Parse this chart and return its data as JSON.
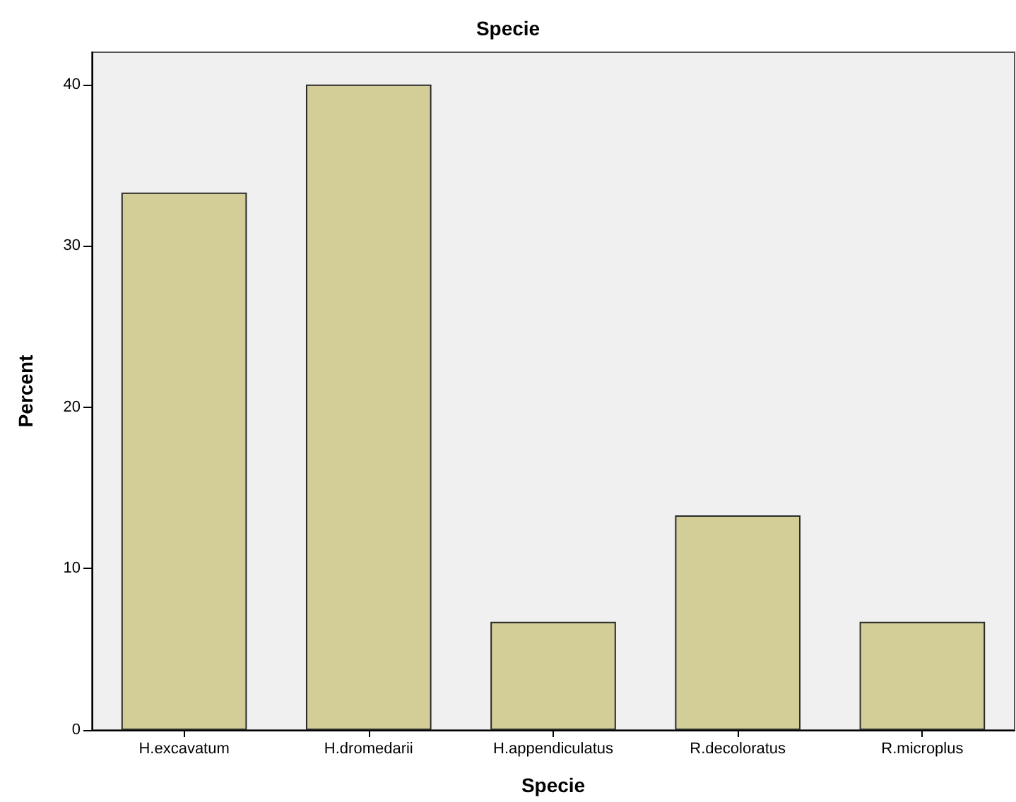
{
  "chart_data": {
    "type": "bar",
    "title": "Specie",
    "xlabel": "Specie",
    "ylabel": "Percent",
    "categories": [
      "H.excavatum",
      "H.dromedarii",
      "H.appendiculatus",
      "R.decoloratus",
      "R.microplus"
    ],
    "values": [
      33.3,
      40.0,
      6.7,
      13.3,
      6.7
    ],
    "color": "#d3ce97",
    "ylim": [
      0,
      42
    ],
    "yticks": [
      0,
      10,
      20,
      30,
      40
    ],
    "grid": false
  }
}
